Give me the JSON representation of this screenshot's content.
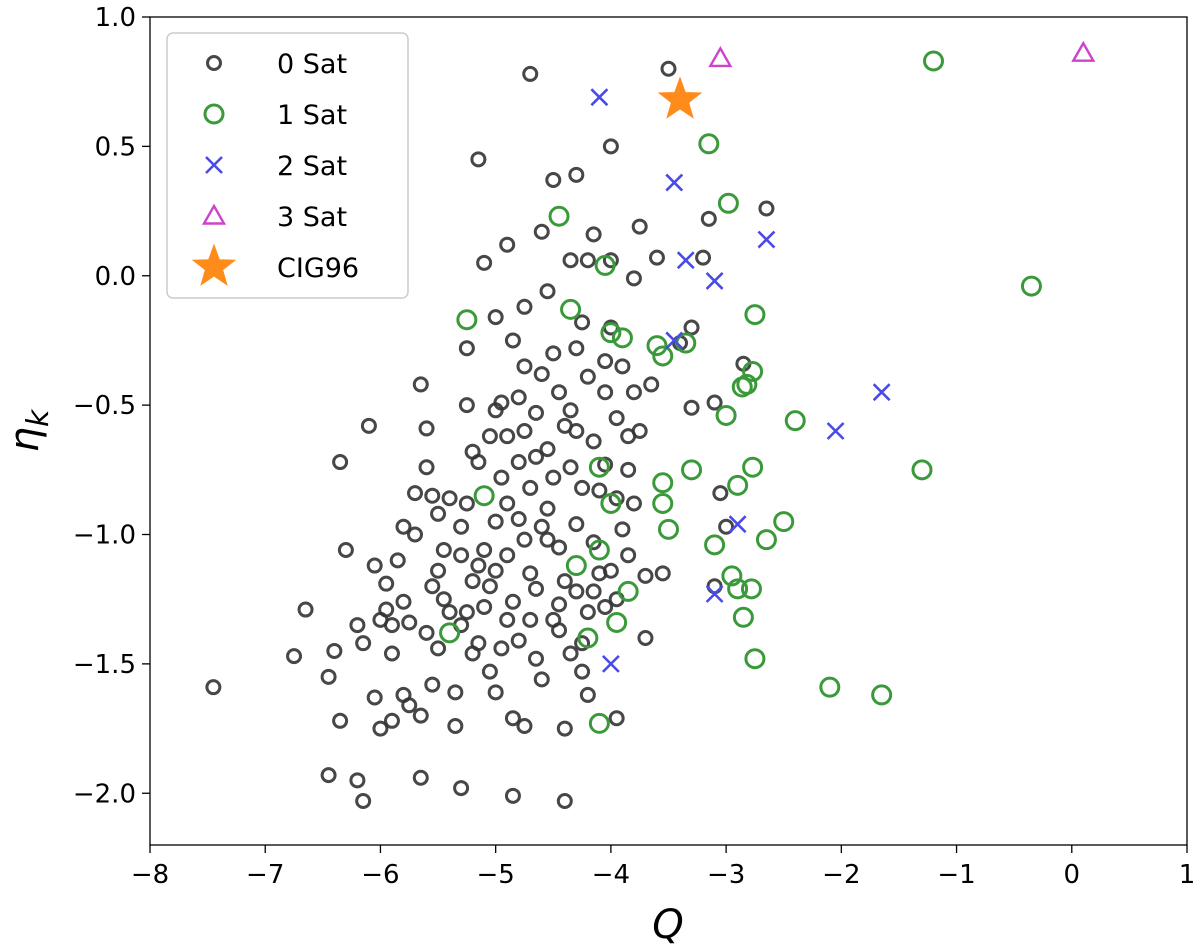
{
  "chart_data": {
    "type": "scatter",
    "title": "",
    "xlabel": "Q",
    "ylabel": "η",
    "ylabel_sub": "k",
    "xlim": [
      -8,
      1
    ],
    "ylim": [
      -2.2,
      1.0
    ],
    "xticks": [
      -8,
      -7,
      -6,
      -5,
      -4,
      -3,
      -2,
      -1,
      0,
      1
    ],
    "xtick_labels": [
      "−8",
      "−7",
      "−6",
      "−5",
      "−4",
      "−3",
      "−2",
      "−1",
      "0",
      "1"
    ],
    "yticks": [
      1.0,
      0.5,
      0.0,
      -0.5,
      -1.0,
      -1.5,
      -2.0
    ],
    "ytick_labels": [
      "1.0",
      "0.5",
      "0.0",
      "−0.5",
      "−1.0",
      "−1.5",
      "−2.0"
    ],
    "grid": false,
    "legend_position": "top-left",
    "series": [
      {
        "name": "0 Sat",
        "marker": "circle-small",
        "color": "#333333",
        "points": [
          [
            -7.45,
            -1.59
          ],
          [
            -6.75,
            -1.47
          ],
          [
            -6.65,
            -1.29
          ],
          [
            -6.45,
            -1.55
          ],
          [
            -6.4,
            -1.45
          ],
          [
            -6.35,
            -0.72
          ],
          [
            -6.35,
            -1.72
          ],
          [
            -6.3,
            -1.06
          ],
          [
            -6.45,
            -1.93
          ],
          [
            -6.2,
            -1.95
          ],
          [
            -6.15,
            -2.03
          ],
          [
            -6.2,
            -1.35
          ],
          [
            -6.15,
            -1.42
          ],
          [
            -6.1,
            -0.58
          ],
          [
            -6.05,
            -1.12
          ],
          [
            -6.05,
            -1.63
          ],
          [
            -6.0,
            -1.33
          ],
          [
            -6.0,
            -1.75
          ],
          [
            -5.95,
            -1.19
          ],
          [
            -5.95,
            -1.29
          ],
          [
            -5.9,
            -1.35
          ],
          [
            -5.9,
            -1.72
          ],
          [
            -5.85,
            -1.1
          ],
          [
            -5.8,
            -1.62
          ],
          [
            -5.8,
            -0.97
          ],
          [
            -5.75,
            -1.34
          ],
          [
            -5.75,
            -1.66
          ],
          [
            -5.7,
            -0.84
          ],
          [
            -5.65,
            -0.42
          ],
          [
            -5.65,
            -1.94
          ],
          [
            -5.65,
            -1.7
          ],
          [
            -5.6,
            -1.38
          ],
          [
            -5.6,
            -0.74
          ],
          [
            -5.55,
            -1.2
          ],
          [
            -5.55,
            -1.58
          ],
          [
            -5.5,
            -0.92
          ],
          [
            -5.5,
            -1.44
          ],
          [
            -5.45,
            -1.25
          ],
          [
            -5.4,
            -1.3
          ],
          [
            -5.4,
            -0.86
          ],
          [
            -5.35,
            -1.61
          ],
          [
            -5.35,
            -1.74
          ],
          [
            -5.3,
            -1.08
          ],
          [
            -5.3,
            -1.35
          ],
          [
            -5.3,
            -1.98
          ],
          [
            -5.25,
            -0.28
          ],
          [
            -5.25,
            -0.88
          ],
          [
            -5.2,
            -1.18
          ],
          [
            -5.2,
            -1.46
          ],
          [
            -5.2,
            -0.68
          ],
          [
            -5.15,
            0.45
          ],
          [
            -5.15,
            -1.42
          ],
          [
            -5.1,
            0.05
          ],
          [
            -5.1,
            -1.06
          ],
          [
            -5.1,
            -1.28
          ],
          [
            -5.05,
            -0.62
          ],
          [
            -5.05,
            -1.53
          ],
          [
            -5.0,
            -0.16
          ],
          [
            -5.0,
            -0.52
          ],
          [
            -5.0,
            -1.14
          ],
          [
            -5.0,
            -1.61
          ],
          [
            -4.95,
            -0.78
          ],
          [
            -4.95,
            -0.49
          ],
          [
            -4.9,
            0.12
          ],
          [
            -4.9,
            -0.88
          ],
          [
            -4.9,
            -1.33
          ],
          [
            -4.85,
            -2.01
          ],
          [
            -4.85,
            -1.71
          ],
          [
            -4.8,
            -0.72
          ],
          [
            -4.8,
            -0.94
          ],
          [
            -4.8,
            -1.41
          ],
          [
            -4.75,
            -0.35
          ],
          [
            -4.75,
            -0.6
          ],
          [
            -4.75,
            -1.02
          ],
          [
            -4.75,
            -1.74
          ],
          [
            -4.7,
            0.78
          ],
          [
            -4.7,
            -0.82
          ],
          [
            -4.65,
            -1.21
          ],
          [
            -4.65,
            -1.48
          ],
          [
            -4.6,
            0.17
          ],
          [
            -4.6,
            -0.38
          ],
          [
            -4.55,
            -0.67
          ],
          [
            -4.55,
            -0.9
          ],
          [
            -4.5,
            0.37
          ],
          [
            -4.5,
            -1.33
          ],
          [
            -4.5,
            -0.3
          ],
          [
            -4.45,
            -0.45
          ],
          [
            -4.45,
            -1.05
          ],
          [
            -4.4,
            -1.75
          ],
          [
            -4.4,
            -2.03
          ],
          [
            -4.35,
            0.06
          ],
          [
            -4.35,
            -0.52
          ],
          [
            -4.35,
            -0.74
          ],
          [
            -4.3,
            0.39
          ],
          [
            -4.3,
            -0.28
          ],
          [
            -4.3,
            -0.96
          ],
          [
            -4.25,
            -1.42
          ],
          [
            -4.25,
            -1.53
          ],
          [
            -4.2,
            -1.62
          ],
          [
            -4.2,
            0.06
          ],
          [
            -4.2,
            -0.39
          ],
          [
            -4.15,
            0.16
          ],
          [
            -4.15,
            -0.64
          ],
          [
            -4.1,
            -0.83
          ],
          [
            -4.1,
            -1.15
          ],
          [
            -4.05,
            -0.45
          ],
          [
            -4.05,
            -1.28
          ],
          [
            -4.0,
            0.5
          ],
          [
            -4.0,
            0.06
          ],
          [
            -4.0,
            -0.2
          ],
          [
            -3.95,
            -0.55
          ],
          [
            -3.95,
            -1.71
          ],
          [
            -3.9,
            -0.98
          ],
          [
            -3.9,
            -0.35
          ],
          [
            -3.85,
            -1.08
          ],
          [
            -3.8,
            -0.01
          ],
          [
            -3.8,
            -0.45
          ],
          [
            -3.75,
            0.19
          ],
          [
            -3.75,
            -0.6
          ],
          [
            -3.7,
            -1.4
          ],
          [
            -3.7,
            -1.16
          ],
          [
            -3.65,
            -0.42
          ],
          [
            -3.6,
            0.07
          ],
          [
            -3.55,
            -1.15
          ],
          [
            -3.5,
            0.8
          ],
          [
            -3.4,
            -0.26
          ],
          [
            -3.3,
            -0.2
          ],
          [
            -3.3,
            -0.51
          ],
          [
            -3.2,
            0.07
          ],
          [
            -3.15,
            0.22
          ],
          [
            -3.1,
            -0.49
          ],
          [
            -3.05,
            -0.84
          ],
          [
            -3.0,
            -0.97
          ],
          [
            -2.85,
            -0.34
          ],
          [
            -2.65,
            0.26
          ],
          [
            -3.1,
            -1.2
          ],
          [
            -5.9,
            -1.46
          ],
          [
            -5.55,
            -0.85
          ],
          [
            -5.25,
            -0.5
          ],
          [
            -5.0,
            -0.95
          ],
          [
            -4.85,
            -0.25
          ],
          [
            -4.7,
            -1.15
          ],
          [
            -4.6,
            -1.56
          ],
          [
            -4.55,
            -0.06
          ],
          [
            -4.4,
            -0.58
          ],
          [
            -4.25,
            -0.82
          ],
          [
            -4.15,
            -1.03
          ],
          [
            -3.95,
            -1.25
          ],
          [
            -4.3,
            -1.22
          ],
          [
            -4.5,
            -0.78
          ],
          [
            -4.65,
            -0.53
          ],
          [
            -4.85,
            -1.26
          ],
          [
            -5.15,
            -0.72
          ],
          [
            -5.45,
            -1.06
          ],
          [
            -4.95,
            -1.44
          ],
          [
            -4.45,
            -1.37
          ],
          [
            -4.35,
            -1.46
          ],
          [
            -4.2,
            -1.3
          ],
          [
            -4.05,
            -0.73
          ],
          [
            -3.85,
            -0.75
          ],
          [
            -4.6,
            -0.97
          ],
          [
            -5.05,
            -1.2
          ],
          [
            -5.25,
            -1.3
          ],
          [
            -4.9,
            -0.62
          ],
          [
            -4.25,
            -0.18
          ],
          [
            -4.05,
            -0.33
          ],
          [
            -5.6,
            -0.59
          ],
          [
            -5.3,
            -0.97
          ],
          [
            -5.8,
            -1.26
          ],
          [
            -4.75,
            -0.12
          ],
          [
            -4.15,
            -1.22
          ],
          [
            -3.95,
            -0.86
          ],
          [
            -3.85,
            -0.62
          ],
          [
            -4.4,
            -1.18
          ],
          [
            -4.55,
            -1.02
          ],
          [
            -5.15,
            -1.12
          ],
          [
            -5.5,
            -1.14
          ],
          [
            -5.7,
            -1.0
          ],
          [
            -4.65,
            -0.7
          ],
          [
            -4.3,
            -0.6
          ],
          [
            -4.9,
            -1.08
          ],
          [
            -4.8,
            -0.47
          ],
          [
            -4.0,
            -1.14
          ],
          [
            -3.8,
            -0.88
          ],
          [
            -4.45,
            -1.27
          ],
          [
            -4.7,
            -1.33
          ]
        ]
      },
      {
        "name": "1 Sat",
        "marker": "circle",
        "color": "#3a9a3a",
        "points": [
          [
            -1.2,
            0.83
          ],
          [
            -3.15,
            0.51
          ],
          [
            -2.98,
            0.28
          ],
          [
            -4.45,
            0.23
          ],
          [
            -4.05,
            0.04
          ],
          [
            -0.35,
            -0.04
          ],
          [
            -5.25,
            -0.17
          ],
          [
            -4.35,
            -0.13
          ],
          [
            -2.75,
            -0.15
          ],
          [
            -4.0,
            -0.22
          ],
          [
            -3.9,
            -0.24
          ],
          [
            -3.6,
            -0.27
          ],
          [
            -3.35,
            -0.26
          ],
          [
            -3.55,
            -0.31
          ],
          [
            -2.77,
            -0.37
          ],
          [
            -2.82,
            -0.42
          ],
          [
            -2.86,
            -0.43
          ],
          [
            -3.0,
            -0.54
          ],
          [
            -2.4,
            -0.56
          ],
          [
            -4.1,
            -0.74
          ],
          [
            -3.3,
            -0.75
          ],
          [
            -2.77,
            -0.74
          ],
          [
            -1.3,
            -0.75
          ],
          [
            -3.55,
            -0.8
          ],
          [
            -2.9,
            -0.81
          ],
          [
            -5.1,
            -0.85
          ],
          [
            -3.55,
            -0.88
          ],
          [
            -4.0,
            -0.88
          ],
          [
            -3.5,
            -0.98
          ],
          [
            -2.5,
            -0.95
          ],
          [
            -3.1,
            -1.04
          ],
          [
            -2.65,
            -1.02
          ],
          [
            -4.1,
            -1.06
          ],
          [
            -4.3,
            -1.12
          ],
          [
            -2.95,
            -1.16
          ],
          [
            -2.9,
            -1.21
          ],
          [
            -2.78,
            -1.21
          ],
          [
            -3.85,
            -1.22
          ],
          [
            -2.85,
            -1.32
          ],
          [
            -3.95,
            -1.34
          ],
          [
            -5.4,
            -1.38
          ],
          [
            -4.2,
            -1.4
          ],
          [
            -2.75,
            -1.48
          ],
          [
            -2.1,
            -1.59
          ],
          [
            -1.65,
            -1.62
          ],
          [
            -4.1,
            -1.73
          ]
        ]
      },
      {
        "name": "2 Sat",
        "marker": "x",
        "color": "#4a4ae8",
        "points": [
          [
            -4.1,
            0.69
          ],
          [
            -3.45,
            0.36
          ],
          [
            -2.65,
            0.14
          ],
          [
            -3.35,
            0.06
          ],
          [
            -3.1,
            -0.02
          ],
          [
            -3.45,
            -0.25
          ],
          [
            -1.65,
            -0.45
          ],
          [
            -2.05,
            -0.6
          ],
          [
            -2.9,
            -0.96
          ],
          [
            -3.1,
            -1.23
          ],
          [
            -4.0,
            -1.5
          ]
        ]
      },
      {
        "name": "3 Sat",
        "marker": "triangle",
        "color": "#cc44cc",
        "points": [
          [
            -3.05,
            0.84
          ],
          [
            0.1,
            0.86
          ]
        ]
      },
      {
        "name": "CIG96",
        "marker": "star",
        "color": "#ff8c1a",
        "points": [
          [
            -3.4,
            0.68
          ]
        ]
      }
    ]
  }
}
